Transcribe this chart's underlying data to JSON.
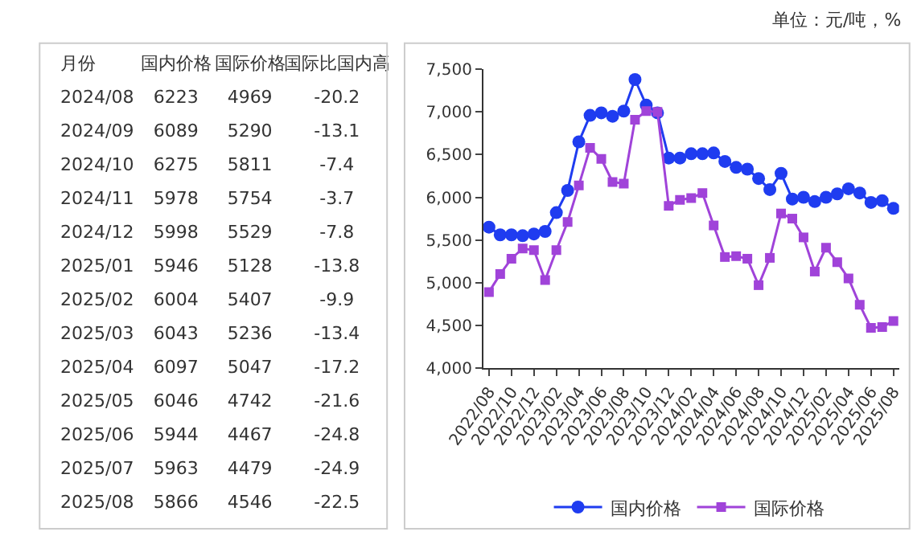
{
  "chart_data": [
    {
      "type": "other",
      "xlabel": "月份",
      "categories": [
        "2024/08",
        "2024/09",
        "2024/10",
        "2024/11",
        "2024/12",
        "2025/01",
        "2025/02",
        "2025/03",
        "2025/04",
        "2025/05",
        "2025/06",
        "2025/07",
        "2025/08"
      ],
      "series": [
        {
          "name": "国内价格",
          "values": [
            6223,
            6089,
            6275,
            5978,
            5998,
            5946,
            6004,
            6043,
            6097,
            6046,
            5944,
            5963,
            5866
          ]
        },
        {
          "name": "国际价格",
          "values": [
            4969,
            5290,
            5811,
            5754,
            5529,
            5128,
            5407,
            5236,
            5047,
            4742,
            4467,
            4479,
            4546
          ]
        },
        {
          "name": "国际比国内高",
          "values": [
            -20.2,
            -13.1,
            -7.4,
            -3.7,
            -7.8,
            -13.8,
            -9.9,
            -13.4,
            -17.2,
            -21.6,
            -24.8,
            -24.9,
            -22.5
          ]
        }
      ],
      "data_labels": true
    },
    {
      "type": "line",
      "annotations": [
        "单位：元/吨，%"
      ],
      "categories": [
        "2022/08",
        null,
        "2022/10",
        null,
        "2022/12",
        null,
        "2023/02",
        null,
        "2023/04",
        null,
        "2023/06",
        null,
        "2023/08",
        null,
        "2023/10",
        null,
        "2023/12",
        null,
        "2024/02",
        null,
        "2024/04",
        null,
        "2024/06",
        null,
        "2024/08",
        null,
        "2024/10",
        null,
        "2024/12",
        null,
        "2025/02",
        null,
        "2025/04",
        null,
        "2025/06",
        null,
        "2025/08"
      ],
      "series": [
        {
          "name": "国内价格",
          "color": "#1f3cf0",
          "marker": "circle",
          "values": [
            5650,
            5560,
            5560,
            5550,
            5570,
            5600,
            5820,
            6080,
            6650,
            6960,
            6990,
            6950,
            7010,
            7380,
            7080,
            6990,
            6460,
            6460,
            6510,
            6510,
            6520,
            6420,
            6350,
            6330,
            6220,
            6090,
            6280,
            5980,
            6000,
            5950,
            6000,
            6040,
            6100,
            6050,
            5940,
            5960,
            5870
          ]
        },
        {
          "name": "国际价格",
          "color": "#a043d9",
          "marker": "square",
          "values": [
            4890,
            5100,
            5280,
            5400,
            5380,
            5030,
            5380,
            5710,
            6140,
            6580,
            6450,
            6180,
            6160,
            6910,
            7010,
            7000,
            5900,
            5970,
            5990,
            6050,
            5670,
            5300,
            5310,
            5280,
            4970,
            5290,
            5810,
            5750,
            5530,
            5130,
            5410,
            5240,
            5050,
            4740,
            4470,
            4480,
            4550
          ]
        }
      ],
      "ylim": [
        4000,
        7500
      ],
      "yticks": [
        {
          "value": 4000,
          "label": "4,000"
        },
        {
          "value": 4500,
          "label": "4,500"
        },
        {
          "value": 5000,
          "label": "5,000"
        },
        {
          "value": 5500,
          "label": "5,500"
        },
        {
          "value": 6000,
          "label": "6,000"
        },
        {
          "value": 6500,
          "label": "6,500"
        },
        {
          "value": 7000,
          "label": "7,000"
        },
        {
          "value": 7500,
          "label": "7,500"
        }
      ],
      "legend": "bottom",
      "line_style": "solid"
    }
  ]
}
